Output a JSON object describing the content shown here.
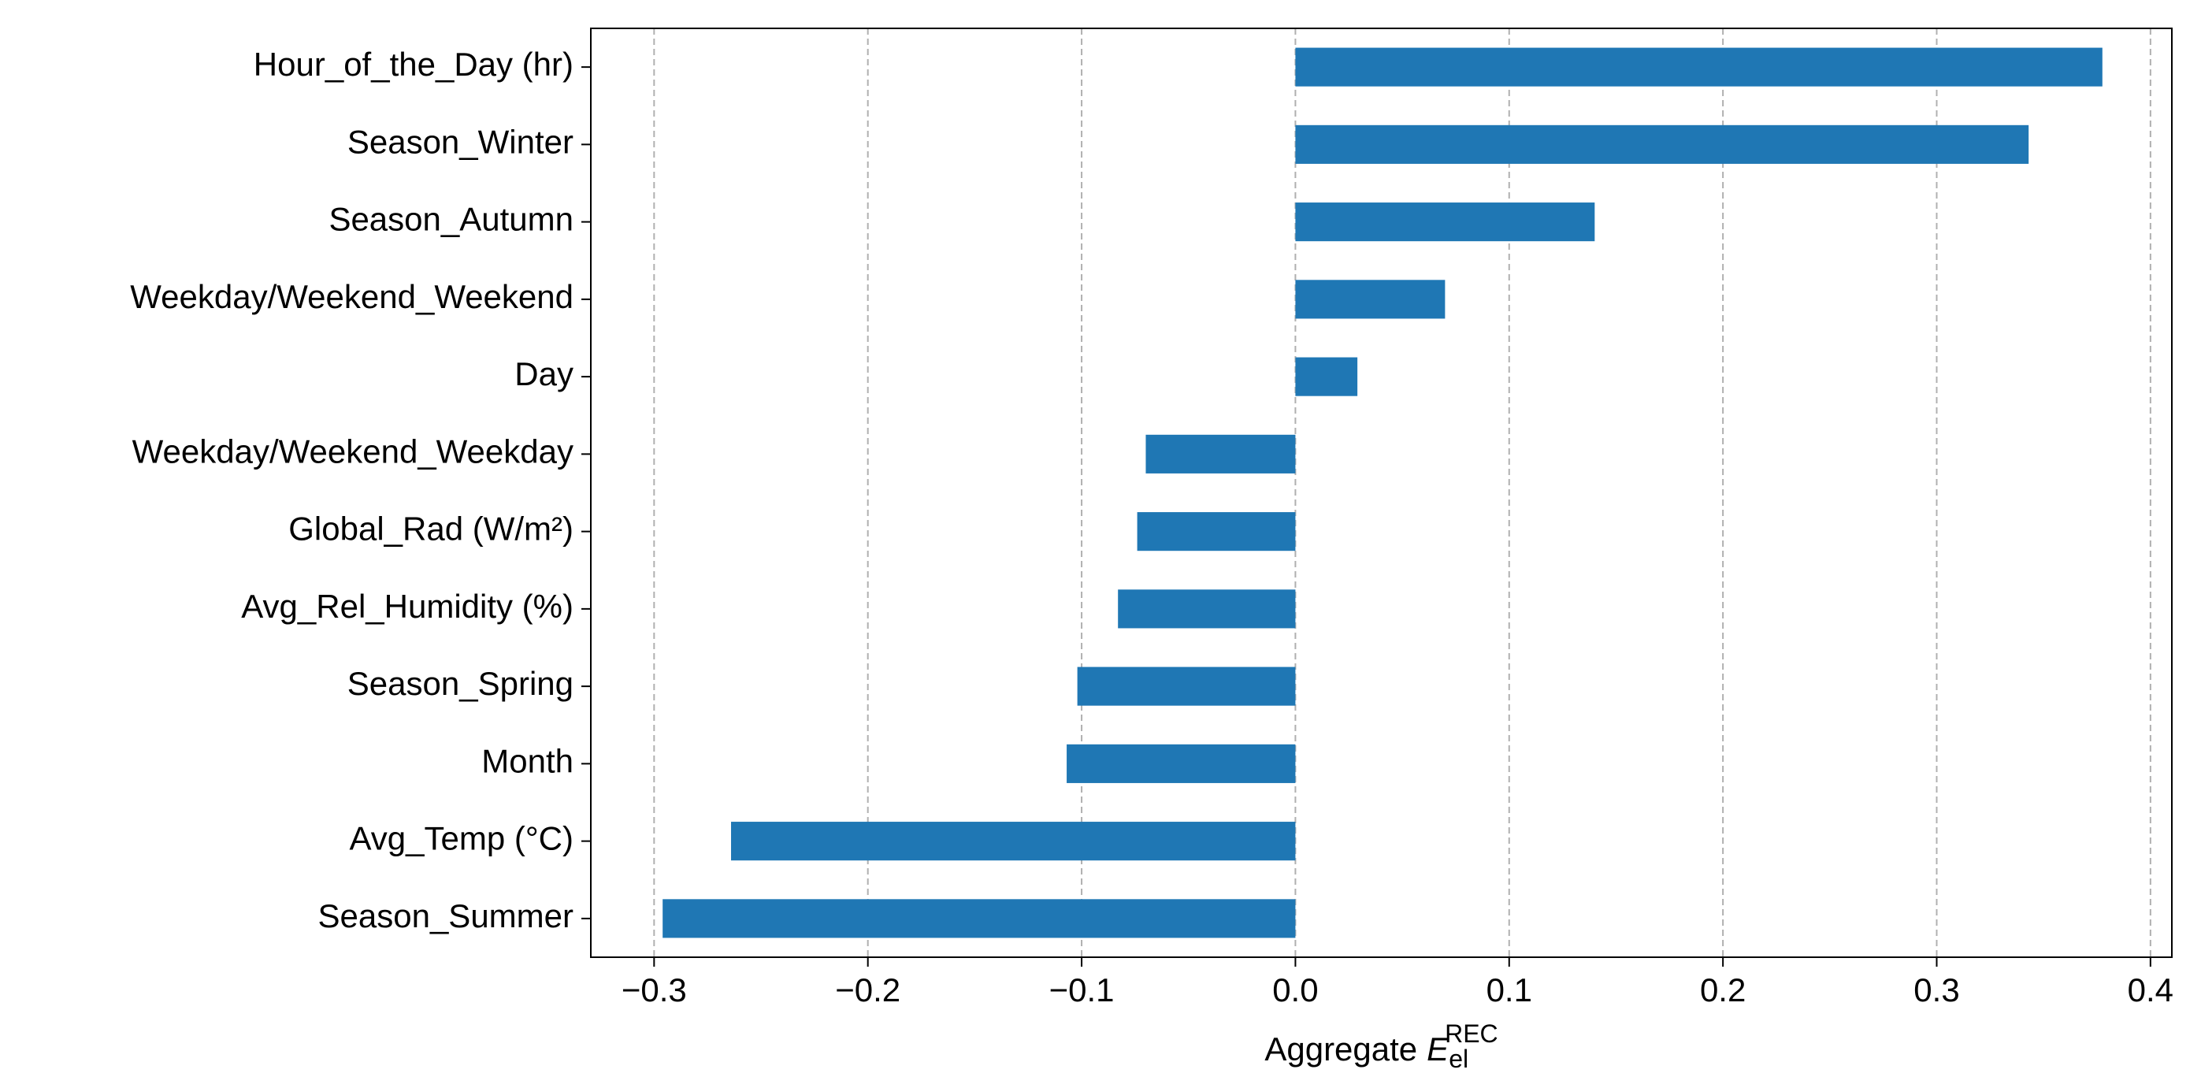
{
  "chart_data": {
    "type": "barh",
    "categories": [
      "Hour_of_the_Day (hr)",
      "Season_Winter",
      "Season_Autumn",
      "Weekday/Weekend_Weekend",
      "Day",
      "Weekday/Weekend_Weekday",
      "Global_Rad (W/m²)",
      "Avg_Rel_Humidity (%)",
      "Season_Spring",
      "Month",
      "Avg_Temp (°C)",
      "Season_Summer"
    ],
    "values": [
      0.3775,
      0.343,
      0.14,
      0.07,
      0.029,
      -0.07,
      -0.074,
      -0.083,
      -0.102,
      -0.107,
      -0.264,
      -0.296
    ],
    "color": "#1f77b4",
    "xlim": [
      -0.3296,
      0.41
    ],
    "xticks": [
      {
        "value": -0.3,
        "label": "−0.3"
      },
      {
        "value": -0.2,
        "label": "−0.2"
      },
      {
        "value": -0.1,
        "label": "−0.1"
      },
      {
        "value": 0,
        "label": "0.0"
      },
      0.1,
      0.2,
      0.3,
      0.4
    ],
    "xlabel": {
      "text": "Aggregate",
      "symbol": "E",
      "subscript": "el",
      "superscript": "REC"
    },
    "grid": true
  }
}
